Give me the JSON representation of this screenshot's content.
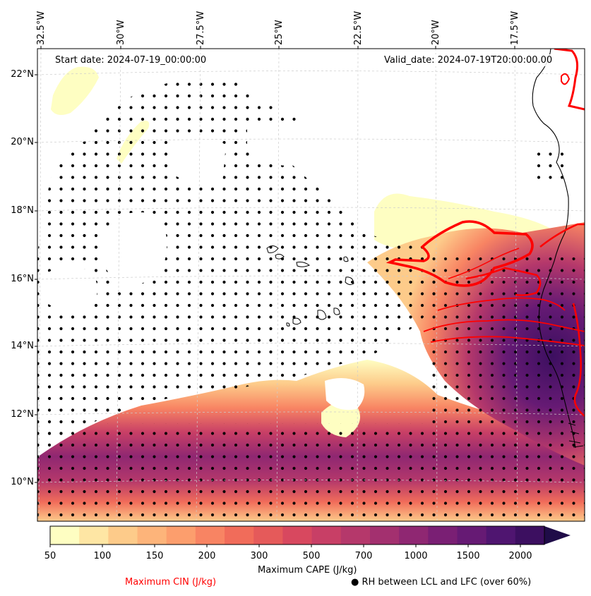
{
  "map": {
    "start_date": "Start date: 2024-07-19_00:00:00",
    "valid_date": "Valid_date: 2024-07-19T20:00:00.00",
    "lon_labels": [
      "32.5°W",
      "30°W",
      "27.5°W",
      "25°W",
      "22.5°W",
      "20°W",
      "17.5°W"
    ],
    "lat_labels": [
      "22°N",
      "20°N",
      "18°N",
      "16°N",
      "14°N",
      "12°N",
      "10°N"
    ]
  },
  "colorbar": {
    "label": "Maximum CAPE (J/kg)",
    "ticks": [
      "50",
      "100",
      "150",
      "200",
      "300",
      "500",
      "700",
      "1000",
      "1500",
      "2000"
    ],
    "colors": [
      "#fefec2",
      "#fee6a4",
      "#fdcb8a",
      "#fdb47a",
      "#fc9e6d",
      "#f88463",
      "#f16c5a",
      "#e55a5a",
      "#d8485f",
      "#c83f66",
      "#b5386b",
      "#a3306f",
      "#8f2772",
      "#7a1f74",
      "#661a74",
      "#4f1570",
      "#3c0f60",
      "#1f0c48"
    ]
  },
  "legend": {
    "cin_label": "Maximum CIN (J/kg)",
    "cin_color": "#ff0000",
    "rh_marker": "●",
    "rh_label": "RH between LCL and LFC (over 60%)"
  }
}
